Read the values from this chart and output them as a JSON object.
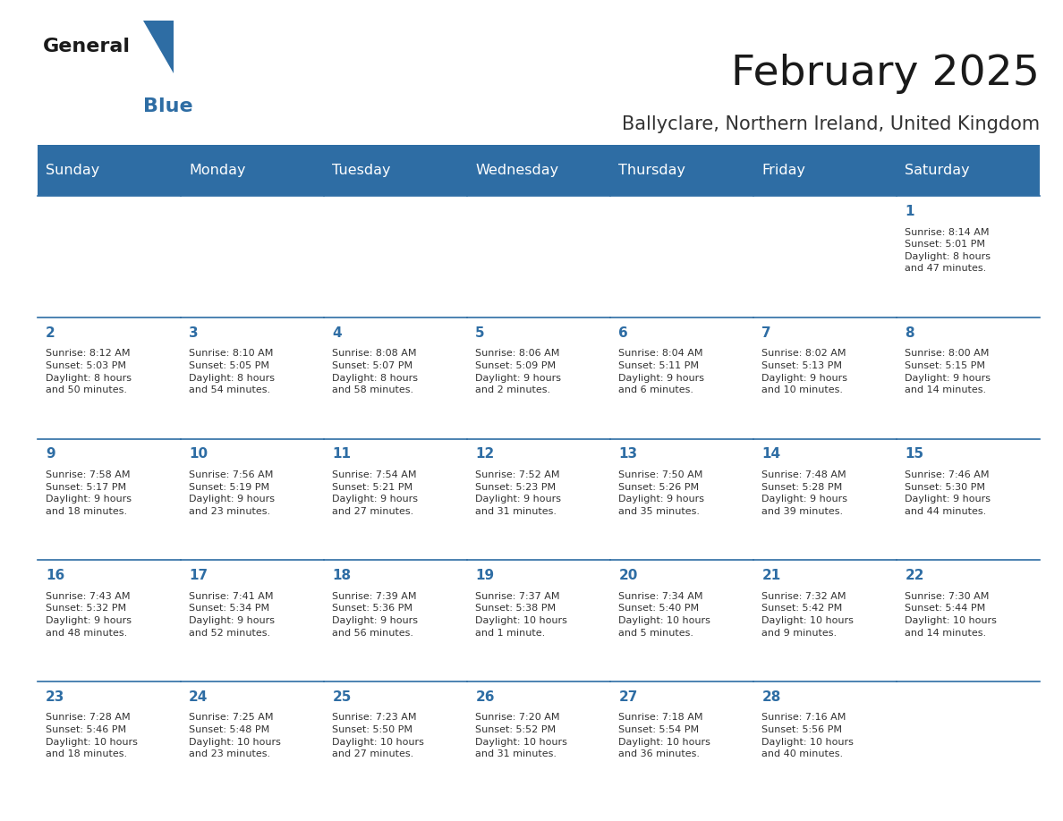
{
  "title": "February 2025",
  "subtitle": "Ballyclare, Northern Ireland, United Kingdom",
  "header_bg": "#2E6DA4",
  "header_text": "#FFFFFF",
  "cell_bg": "#F2F2F2",
  "border_color": "#2E6DA4",
  "day_names": [
    "Sunday",
    "Monday",
    "Tuesday",
    "Wednesday",
    "Thursday",
    "Friday",
    "Saturday"
  ],
  "title_color": "#1a1a1a",
  "subtitle_color": "#333333",
  "day_num_color": "#2E6DA4",
  "info_color": "#333333",
  "logo_general_color": "#1a1a1a",
  "logo_blue_color": "#2E6DA4",
  "logo_triangle_color": "#2E6DA4",
  "weeks": [
    [
      {
        "day": "",
        "info": ""
      },
      {
        "day": "",
        "info": ""
      },
      {
        "day": "",
        "info": ""
      },
      {
        "day": "",
        "info": ""
      },
      {
        "day": "",
        "info": ""
      },
      {
        "day": "",
        "info": ""
      },
      {
        "day": "1",
        "info": "Sunrise: 8:14 AM\nSunset: 5:01 PM\nDaylight: 8 hours\nand 47 minutes."
      }
    ],
    [
      {
        "day": "2",
        "info": "Sunrise: 8:12 AM\nSunset: 5:03 PM\nDaylight: 8 hours\nand 50 minutes."
      },
      {
        "day": "3",
        "info": "Sunrise: 8:10 AM\nSunset: 5:05 PM\nDaylight: 8 hours\nand 54 minutes."
      },
      {
        "day": "4",
        "info": "Sunrise: 8:08 AM\nSunset: 5:07 PM\nDaylight: 8 hours\nand 58 minutes."
      },
      {
        "day": "5",
        "info": "Sunrise: 8:06 AM\nSunset: 5:09 PM\nDaylight: 9 hours\nand 2 minutes."
      },
      {
        "day": "6",
        "info": "Sunrise: 8:04 AM\nSunset: 5:11 PM\nDaylight: 9 hours\nand 6 minutes."
      },
      {
        "day": "7",
        "info": "Sunrise: 8:02 AM\nSunset: 5:13 PM\nDaylight: 9 hours\nand 10 minutes."
      },
      {
        "day": "8",
        "info": "Sunrise: 8:00 AM\nSunset: 5:15 PM\nDaylight: 9 hours\nand 14 minutes."
      }
    ],
    [
      {
        "day": "9",
        "info": "Sunrise: 7:58 AM\nSunset: 5:17 PM\nDaylight: 9 hours\nand 18 minutes."
      },
      {
        "day": "10",
        "info": "Sunrise: 7:56 AM\nSunset: 5:19 PM\nDaylight: 9 hours\nand 23 minutes."
      },
      {
        "day": "11",
        "info": "Sunrise: 7:54 AM\nSunset: 5:21 PM\nDaylight: 9 hours\nand 27 minutes."
      },
      {
        "day": "12",
        "info": "Sunrise: 7:52 AM\nSunset: 5:23 PM\nDaylight: 9 hours\nand 31 minutes."
      },
      {
        "day": "13",
        "info": "Sunrise: 7:50 AM\nSunset: 5:26 PM\nDaylight: 9 hours\nand 35 minutes."
      },
      {
        "day": "14",
        "info": "Sunrise: 7:48 AM\nSunset: 5:28 PM\nDaylight: 9 hours\nand 39 minutes."
      },
      {
        "day": "15",
        "info": "Sunrise: 7:46 AM\nSunset: 5:30 PM\nDaylight: 9 hours\nand 44 minutes."
      }
    ],
    [
      {
        "day": "16",
        "info": "Sunrise: 7:43 AM\nSunset: 5:32 PM\nDaylight: 9 hours\nand 48 minutes."
      },
      {
        "day": "17",
        "info": "Sunrise: 7:41 AM\nSunset: 5:34 PM\nDaylight: 9 hours\nand 52 minutes."
      },
      {
        "day": "18",
        "info": "Sunrise: 7:39 AM\nSunset: 5:36 PM\nDaylight: 9 hours\nand 56 minutes."
      },
      {
        "day": "19",
        "info": "Sunrise: 7:37 AM\nSunset: 5:38 PM\nDaylight: 10 hours\nand 1 minute."
      },
      {
        "day": "20",
        "info": "Sunrise: 7:34 AM\nSunset: 5:40 PM\nDaylight: 10 hours\nand 5 minutes."
      },
      {
        "day": "21",
        "info": "Sunrise: 7:32 AM\nSunset: 5:42 PM\nDaylight: 10 hours\nand 9 minutes."
      },
      {
        "day": "22",
        "info": "Sunrise: 7:30 AM\nSunset: 5:44 PM\nDaylight: 10 hours\nand 14 minutes."
      }
    ],
    [
      {
        "day": "23",
        "info": "Sunrise: 7:28 AM\nSunset: 5:46 PM\nDaylight: 10 hours\nand 18 minutes."
      },
      {
        "day": "24",
        "info": "Sunrise: 7:25 AM\nSunset: 5:48 PM\nDaylight: 10 hours\nand 23 minutes."
      },
      {
        "day": "25",
        "info": "Sunrise: 7:23 AM\nSunset: 5:50 PM\nDaylight: 10 hours\nand 27 minutes."
      },
      {
        "day": "26",
        "info": "Sunrise: 7:20 AM\nSunset: 5:52 PM\nDaylight: 10 hours\nand 31 minutes."
      },
      {
        "day": "27",
        "info": "Sunrise: 7:18 AM\nSunset: 5:54 PM\nDaylight: 10 hours\nand 36 minutes."
      },
      {
        "day": "28",
        "info": "Sunrise: 7:16 AM\nSunset: 5:56 PM\nDaylight: 10 hours\nand 40 minutes."
      },
      {
        "day": "",
        "info": ""
      }
    ]
  ]
}
